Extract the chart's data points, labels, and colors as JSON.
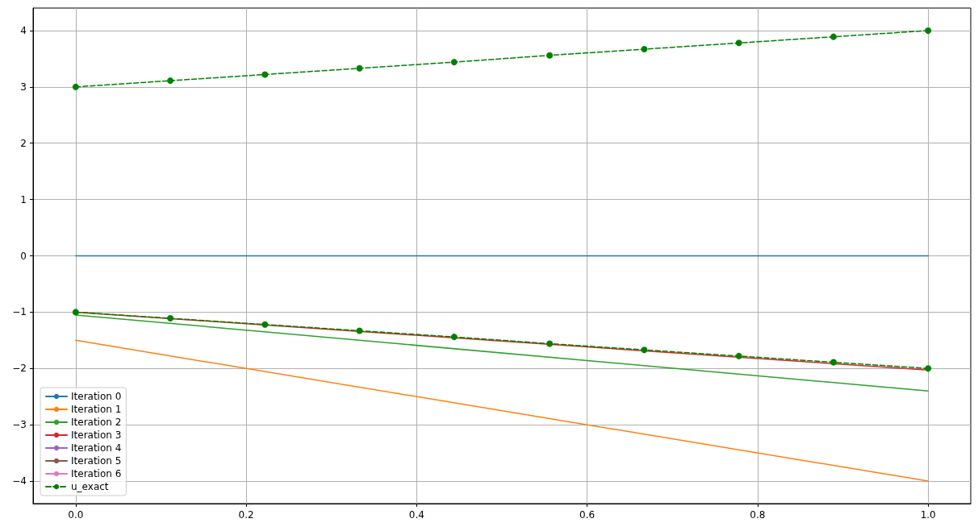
{
  "chart_data": {
    "type": "line",
    "xlim": [
      -0.05,
      1.05
    ],
    "ylim": [
      -4.4,
      4.4
    ],
    "xticks": [
      {
        "value": 0,
        "label": "0.0"
      },
      {
        "value": 0.2,
        "label": "0.2"
      },
      {
        "value": 0.4,
        "label": "0.4"
      },
      {
        "value": 0.6,
        "label": "0.6"
      },
      {
        "value": 0.8,
        "label": "0.8"
      },
      {
        "value": 1,
        "label": "1.0"
      }
    ],
    "yticks": [
      {
        "value": -4,
        "label": "−4"
      },
      {
        "value": -3,
        "label": "−3"
      },
      {
        "value": -2,
        "label": "−2"
      },
      {
        "value": -1,
        "label": "−1"
      },
      0,
      1,
      2,
      3,
      4
    ],
    "grid": true,
    "legend": "bottom left",
    "marker": "none",
    "line_style": "solid",
    "series": [
      {
        "name": "Iteration 0",
        "color": "#1f77b4",
        "x": [
          0,
          1
        ],
        "values": [
          0,
          0
        ]
      },
      {
        "name": "Iteration 1",
        "color": "#ff7f0e",
        "x": [
          0,
          1
        ],
        "values": [
          -1.5,
          -4
        ]
      },
      {
        "name": "Iteration 2",
        "color": "#2ca02c",
        "x": [
          0,
          1
        ],
        "values": [
          -1.05,
          -2.4
        ]
      },
      {
        "name": "Iteration 3",
        "color": "#d62728",
        "x": [
          0,
          1
        ],
        "values": [
          -1,
          -2.03
        ]
      },
      {
        "name": "Iteration 4",
        "color": "#9467bd"
      },
      {
        "name": "Iteration 5",
        "color": "#8c564b"
      },
      {
        "name": "Iteration 6",
        "color": "#e377c2"
      },
      {
        "name": "u_exact",
        "color": "#008000",
        "marker": "circle",
        "line_style": "dashed",
        "x": [
          0,
          0.111,
          0.222,
          0.333,
          0.444,
          0.556,
          0.667,
          0.778,
          0.889,
          1
        ],
        "values": [
          3,
          3.11,
          3.22,
          3.33,
          3.44,
          3.56,
          3.67,
          3.78,
          3.89,
          4
        ]
      },
      {
        "color": "#008000",
        "marker": "circle",
        "line_style": "dashed",
        "x": [
          0,
          0.111,
          0.222,
          0.333,
          0.444,
          0.556,
          0.667,
          0.778,
          0.889,
          1
        ],
        "values": [
          -1,
          -1.11,
          -1.22,
          -1.33,
          -1.44,
          -1.56,
          -1.67,
          -1.78,
          -1.89,
          -2
        ]
      }
    ]
  }
}
